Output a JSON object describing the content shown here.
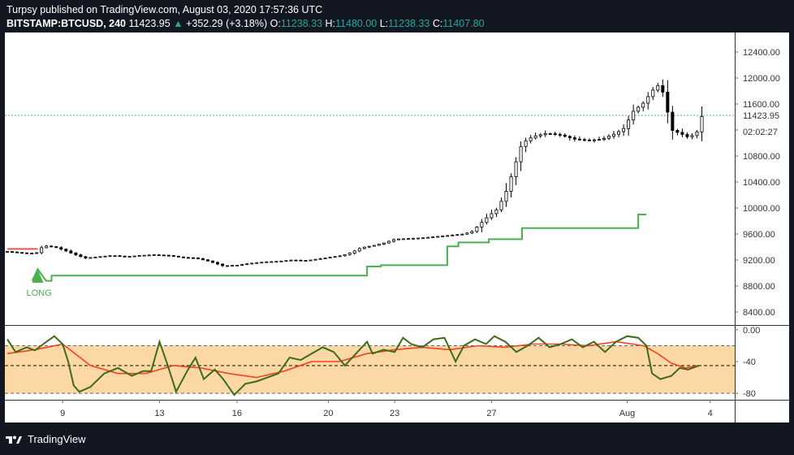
{
  "header": {
    "publisher_line": "Turpsy published on TradingView.com, August 03, 2020 17:57:36 UTC",
    "symbol": "BITSTAMP:BTCUSD, 240",
    "last": "11423.95",
    "change": "+352.29 (+3.18%)",
    "o_label": "O:",
    "o": "11238.33",
    "h_label": "H:",
    "h": "11480.00",
    "l_label": "L:",
    "l": "11238.33",
    "c_label": "C:",
    "c": "11407.80"
  },
  "footer": {
    "brand": "TradingView"
  },
  "colors": {
    "background": "#131722",
    "plot_background": "#ffffff",
    "candle": "#000000",
    "stop_line": "#4caf50",
    "short_stop_line": "#ef5350",
    "osc_line": "#3d6b1a",
    "osc_signal": "#f5431f",
    "osc_band": "#fbd8a5",
    "price_line": "#4caf50",
    "axis_text": "#333333"
  },
  "chart_data": {
    "type": "candlestick",
    "price_pane": {
      "ylim": [
        8200,
        12700
      ],
      "yticks": [
        8400,
        8800,
        9200,
        9600,
        10000,
        10400,
        10800,
        11200,
        11600,
        12000,
        12400
      ],
      "ytick_labels": [
        "8400.00",
        "8800.00",
        "9200.00",
        "9600.00",
        "10000.00",
        "10400.00",
        "10800.00",
        "",
        "11600.00",
        "12000.00",
        "12400.00"
      ],
      "last_price_label": "11423.95",
      "countdown_label": "02:02:27",
      "last_price": 11423.95,
      "signal_label": "LONG",
      "signal_at": 1.1,
      "closes": [
        [
          0,
          9330
        ],
        [
          0.5,
          9310
        ],
        [
          1,
          9300
        ],
        [
          1.1,
          9320
        ],
        [
          1.3,
          9420
        ],
        [
          1.7,
          9400
        ],
        [
          2,
          9360
        ],
        [
          2.4,
          9290
        ],
        [
          2.8,
          9230
        ],
        [
          3.3,
          9250
        ],
        [
          3.8,
          9270
        ],
        [
          4.3,
          9250
        ],
        [
          4.8,
          9270
        ],
        [
          5.3,
          9280
        ],
        [
          5.8,
          9270
        ],
        [
          6.3,
          9240
        ],
        [
          6.8,
          9230
        ],
        [
          7.3,
          9180
        ],
        [
          7.8,
          9110
        ],
        [
          8.3,
          9120
        ],
        [
          8.8,
          9150
        ],
        [
          9.3,
          9170
        ],
        [
          9.8,
          9180
        ],
        [
          10.3,
          9200
        ],
        [
          10.8,
          9190
        ],
        [
          11.3,
          9220
        ],
        [
          11.8,
          9250
        ],
        [
          12.1,
          9270
        ],
        [
          12.4,
          9310
        ],
        [
          12.8,
          9390
        ],
        [
          13.2,
          9420
        ],
        [
          13.6,
          9460
        ],
        [
          14,
          9520
        ],
        [
          14.5,
          9530
        ],
        [
          15,
          9540
        ],
        [
          15.5,
          9560
        ],
        [
          16,
          9580
        ],
        [
          16.5,
          9600
        ],
        [
          16.8,
          9640
        ],
        [
          17.1,
          9760
        ],
        [
          17.4,
          9880
        ],
        [
          17.7,
          9980
        ],
        [
          18,
          10220
        ],
        [
          18.3,
          10600
        ],
        [
          18.6,
          11000
        ],
        [
          19,
          11100
        ],
        [
          19.5,
          11150
        ],
        [
          20,
          11120
        ],
        [
          20.5,
          11060
        ],
        [
          21,
          11040
        ],
        [
          21.5,
          11060
        ],
        [
          22,
          11150
        ],
        [
          22.3,
          11230
        ],
        [
          22.6,
          11480
        ],
        [
          23,
          11620
        ],
        [
          23.3,
          11800
        ],
        [
          23.6,
          11920
        ],
        [
          23.8,
          11600
        ],
        [
          24,
          11200
        ],
        [
          24.3,
          11150
        ],
        [
          24.6,
          11090
        ],
        [
          24.9,
          11140
        ],
        [
          25.1,
          11407.8
        ]
      ],
      "long_stop": [
        [
          0.9,
          8880
        ],
        [
          1.1,
          9060
        ],
        [
          1.4,
          8880
        ],
        [
          1.6,
          8880
        ],
        [
          1.6,
          8960
        ],
        [
          13,
          8960
        ],
        [
          13,
          9100
        ],
        [
          13.5,
          9100
        ],
        [
          13.5,
          9120
        ],
        [
          15.9,
          9120
        ],
        [
          15.9,
          9410
        ],
        [
          16.3,
          9410
        ],
        [
          16.3,
          9470
        ],
        [
          17.4,
          9470
        ],
        [
          17.4,
          9520
        ],
        [
          18.6,
          9520
        ],
        [
          18.6,
          9690
        ],
        [
          22.8,
          9690
        ],
        [
          22.8,
          9900
        ],
        [
          23.1,
          9900
        ]
      ],
      "short_stop": [
        [
          0,
          9370
        ],
        [
          1.1,
          9370
        ]
      ]
    },
    "osc_pane": {
      "ylim": [
        -88,
        5
      ],
      "yticks": [
        0,
        -40,
        -80
      ],
      "ytick_labels": [
        "0.00",
        "-40",
        "-80"
      ],
      "upper_band": -20,
      "mid_line": -45,
      "lower_band": -80,
      "osc": [
        [
          0,
          -12
        ],
        [
          0.3,
          -28
        ],
        [
          0.7,
          -22
        ],
        [
          1,
          -26
        ],
        [
          1.3,
          -18
        ],
        [
          1.7,
          -8
        ],
        [
          2,
          -18
        ],
        [
          2.2,
          -40
        ],
        [
          2.4,
          -70
        ],
        [
          2.6,
          -78
        ],
        [
          3,
          -72
        ],
        [
          3.5,
          -55
        ],
        [
          4,
          -48
        ],
        [
          4.5,
          -58
        ],
        [
          4.9,
          -52
        ],
        [
          5.2,
          -52
        ],
        [
          5.5,
          -15
        ],
        [
          5.8,
          -45
        ],
        [
          6.1,
          -78
        ],
        [
          6.5,
          -52
        ],
        [
          6.8,
          -35
        ],
        [
          7.1,
          -62
        ],
        [
          7.5,
          -50
        ],
        [
          7.8,
          -62
        ],
        [
          8.2,
          -82
        ],
        [
          8.6,
          -68
        ],
        [
          9,
          -65
        ],
        [
          9.4,
          -60
        ],
        [
          9.8,
          -55
        ],
        [
          10.2,
          -35
        ],
        [
          10.6,
          -38
        ],
        [
          11,
          -30
        ],
        [
          11.4,
          -22
        ],
        [
          11.8,
          -28
        ],
        [
          12.2,
          -45
        ],
        [
          12.6,
          -30
        ],
        [
          13,
          -15
        ],
        [
          13.2,
          -30
        ],
        [
          13.6,
          -25
        ],
        [
          14,
          -28
        ],
        [
          14.3,
          -10
        ],
        [
          14.6,
          -18
        ],
        [
          15,
          -22
        ],
        [
          15.4,
          -12
        ],
        [
          15.8,
          -10
        ],
        [
          16.2,
          -40
        ],
        [
          16.5,
          -20
        ],
        [
          16.9,
          -12
        ],
        [
          17.3,
          -18
        ],
        [
          17.6,
          -8
        ],
        [
          18,
          -15
        ],
        [
          18.4,
          -28
        ],
        [
          18.8,
          -20
        ],
        [
          19.2,
          -10
        ],
        [
          19.6,
          -22
        ],
        [
          20,
          -18
        ],
        [
          20.4,
          -12
        ],
        [
          20.8,
          -22
        ],
        [
          21.2,
          -15
        ],
        [
          21.6,
          -28
        ],
        [
          22,
          -15
        ],
        [
          22.4,
          -8
        ],
        [
          22.8,
          -10
        ],
        [
          23.1,
          -20
        ],
        [
          23.3,
          -55
        ],
        [
          23.6,
          -62
        ],
        [
          24,
          -58
        ],
        [
          24.3,
          -48
        ],
        [
          24.6,
          -50
        ],
        [
          25,
          -45
        ]
      ],
      "signal": [
        [
          0,
          -30
        ],
        [
          1,
          -25
        ],
        [
          2,
          -18
        ],
        [
          3,
          -45
        ],
        [
          4,
          -55
        ],
        [
          5,
          -55
        ],
        [
          6,
          -45
        ],
        [
          7,
          -48
        ],
        [
          8,
          -55
        ],
        [
          9,
          -60
        ],
        [
          10,
          -52
        ],
        [
          11,
          -40
        ],
        [
          12,
          -40
        ],
        [
          13,
          -30
        ],
        [
          14,
          -25
        ],
        [
          15,
          -22
        ],
        [
          16,
          -25
        ],
        [
          17,
          -20
        ],
        [
          18,
          -22
        ],
        [
          19,
          -18
        ],
        [
          20,
          -18
        ],
        [
          21,
          -20
        ],
        [
          22,
          -15
        ],
        [
          23,
          -20
        ],
        [
          23.5,
          -30
        ],
        [
          24,
          -42
        ],
        [
          24.5,
          -48
        ],
        [
          25,
          -45
        ]
      ]
    },
    "x_axis": {
      "tick_labels": [
        "9",
        "13",
        "16",
        "20",
        "23",
        "27",
        "Aug",
        "4"
      ],
      "tick_positions": [
        2,
        5.5,
        8.3,
        11.6,
        14,
        17.5,
        22.4,
        25.4
      ]
    }
  }
}
